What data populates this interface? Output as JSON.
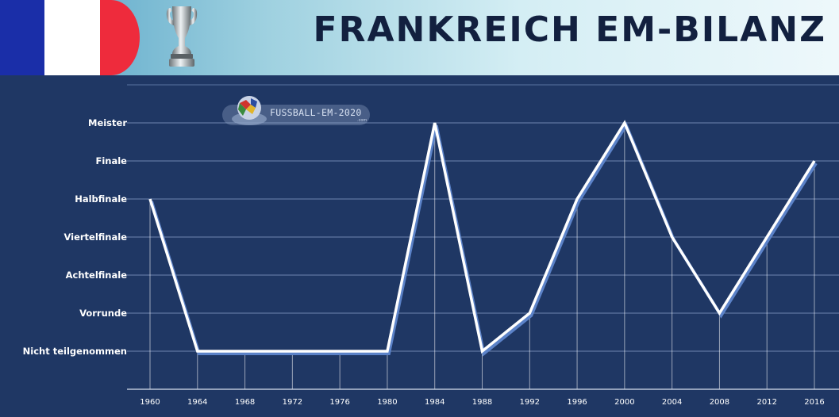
{
  "header": {
    "title": "FRANKREICH EM-BILANZ",
    "flag_icon": "france-flag-icon",
    "trophy_icon": "em-trophy-icon"
  },
  "watermark": {
    "text": "FUSSBALL-EM-2020",
    "sub": ".com"
  },
  "colors": {
    "background": "#1f3764",
    "line": "#ffffff",
    "line_shadow": "#5b82c8",
    "flag_blue": "#1a2ea8",
    "flag_white": "#ffffff",
    "flag_red": "#ee2b3c",
    "title": "#12203f"
  },
  "chart_data": {
    "type": "line",
    "title": "FRANKREICH EM-BILANZ",
    "xlabel": "",
    "ylabel": "",
    "grid": true,
    "legend": "none",
    "y_categories": [
      "Nicht teilgenommen",
      "Vorrunde",
      "Achtelfinale",
      "Viertelfinale",
      "Halbfinale",
      "Finale",
      "Meister"
    ],
    "x": [
      "1960",
      "1964",
      "1968",
      "1972",
      "1976",
      "1980",
      "1984",
      "1988",
      "1992",
      "1996",
      "2000",
      "2004",
      "2008",
      "2012",
      "2016"
    ],
    "series": [
      {
        "values": [
          "Halbfinale",
          "Nicht teilgenommen",
          "Nicht teilgenommen",
          "Nicht teilgenommen",
          "Nicht teilgenommen",
          "Nicht teilgenommen",
          "Meister",
          "Nicht teilgenommen",
          "Vorrunde",
          "Halbfinale",
          "Meister",
          "Viertelfinale",
          "Vorrunde",
          "Viertelfinale",
          "Finale"
        ]
      }
    ]
  }
}
